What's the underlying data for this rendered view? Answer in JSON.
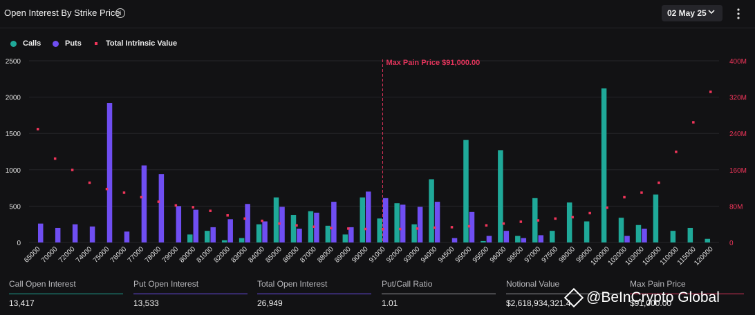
{
  "header": {
    "title": "Open Interest By Strike Price",
    "date": "02 May 25"
  },
  "legend": {
    "calls": "Calls",
    "puts": "Puts",
    "intrinsic": "Total Intrinsic Value"
  },
  "colors": {
    "calls": "#1fa999",
    "puts": "#6f4ef2",
    "intrinsic": "#f0355a",
    "max_pain": "#e2345b"
  },
  "stats": [
    {
      "label": "Call Open Interest",
      "value": "13,417",
      "color": "#1fa999"
    },
    {
      "label": "Put Open Interest",
      "value": "13,533",
      "color": "#6f4ef2"
    },
    {
      "label": "Total Open Interest",
      "value": "26,949",
      "color": "#6f4ef2"
    },
    {
      "label": "Put/Call Ratio",
      "value": "1.01",
      "color": "#9c9ca0"
    },
    {
      "label": "Notional Value",
      "value": "$2,618,934,321.4",
      "color": "#9c9ca0"
    },
    {
      "label": "Max Pain Price",
      "value": "$91,000.00",
      "color": "#e2345b"
    }
  ],
  "watermark": "@BeInCrypto Global",
  "chart_data": {
    "type": "bar",
    "categories": [
      "65000",
      "70000",
      "72000",
      "74000",
      "75000",
      "76000",
      "77000",
      "78000",
      "79000",
      "80000",
      "81000",
      "82000",
      "83000",
      "84000",
      "85000",
      "86000",
      "87000",
      "88000",
      "89000",
      "90000",
      "91000",
      "92000",
      "93000",
      "94000",
      "94500",
      "95000",
      "95500",
      "96000",
      "96500",
      "97000",
      "97500",
      "98000",
      "99000",
      "100000",
      "102000",
      "103000",
      "105000",
      "110000",
      "115000",
      "120000"
    ],
    "series": [
      {
        "name": "Calls",
        "values": [
          0,
          0,
          0,
          0,
          0,
          0,
          0,
          0,
          0,
          110,
          160,
          30,
          60,
          250,
          620,
          380,
          430,
          230,
          110,
          620,
          330,
          540,
          250,
          870,
          0,
          1410,
          20,
          1270,
          90,
          610,
          160,
          550,
          290,
          2120,
          340,
          240,
          660,
          160,
          200,
          50
        ]
      },
      {
        "name": "Puts",
        "values": [
          260,
          200,
          250,
          220,
          1920,
          150,
          1060,
          940,
          500,
          450,
          210,
          320,
          530,
          290,
          490,
          190,
          410,
          560,
          210,
          700,
          610,
          520,
          490,
          560,
          60,
          420,
          90,
          160,
          60,
          100,
          0,
          0,
          0,
          0,
          90,
          190,
          0,
          0,
          0,
          0
        ]
      },
      {
        "name": "Total Intrinsic Value",
        "values": [
          250,
          185,
          160,
          132,
          118,
          110,
          100,
          90,
          82,
          78,
          70,
          60,
          53,
          48,
          42,
          38,
          35,
          32,
          31,
          30,
          30,
          30,
          31,
          33,
          34,
          36,
          38,
          42,
          46,
          49,
          53,
          56,
          65,
          77,
          100,
          110,
          132,
          200,
          265,
          332
        ]
      }
    ],
    "xlabel": "",
    "ylabel": "",
    "ylim": [
      0,
      2500
    ],
    "y_ticks": [
      0,
      500,
      1000,
      1500,
      2000,
      2500
    ],
    "y2lim": [
      0,
      400
    ],
    "y2_ticks": [
      "0",
      "80M",
      "160M",
      "240M",
      "320M",
      "400M"
    ],
    "y2_unit": "M",
    "annotation": {
      "category": "91000",
      "label": "Max Pain Price $91,000.00"
    }
  }
}
